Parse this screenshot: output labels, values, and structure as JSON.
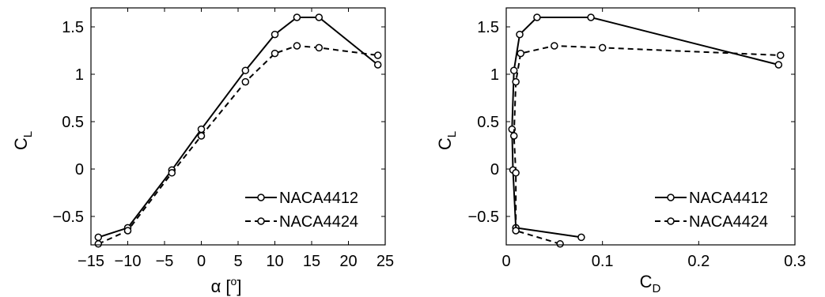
{
  "chart_data": [
    {
      "type": "line",
      "xlabel": {
        "main": "α [",
        "sup": "o",
        "close": "]"
      },
      "ylabel": {
        "main": "C",
        "sub": "L"
      },
      "xlim": [
        -15,
        25
      ],
      "ylim": [
        -0.8,
        1.7
      ],
      "xticks": [
        -15,
        -10,
        -5,
        0,
        5,
        10,
        15,
        20,
        25
      ],
      "yticks": [
        -0.5,
        0,
        0.5,
        1,
        1.5
      ],
      "xtick_labels": [
        "−15",
        "−10",
        "−5",
        "0",
        "5",
        "10",
        "15",
        "20",
        "25"
      ],
      "ytick_labels": [
        "−0.5",
        "0",
        "0.5",
        "1",
        "1.5"
      ],
      "legend_position": "bottom-right",
      "series": [
        {
          "name": "NACA4412",
          "style": "solid",
          "points": [
            [
              -14,
              -0.72
            ],
            [
              -10,
              -0.62
            ],
            [
              -4,
              -0.01
            ],
            [
              0,
              0.42
            ],
            [
              6,
              1.04
            ],
            [
              10,
              1.42
            ],
            [
              13,
              1.6
            ],
            [
              16,
              1.6
            ],
            [
              24,
              1.1
            ]
          ]
        },
        {
          "name": "NACA4424",
          "style": "dashed",
          "points": [
            [
              -14,
              -0.79
            ],
            [
              -10,
              -0.65
            ],
            [
              -4,
              -0.04
            ],
            [
              0,
              0.35
            ],
            [
              6,
              0.92
            ],
            [
              10,
              1.22
            ],
            [
              13,
              1.3
            ],
            [
              16,
              1.28
            ],
            [
              24,
              1.2
            ]
          ]
        }
      ]
    },
    {
      "type": "line",
      "xlabel": {
        "main": "C",
        "sub": "D"
      },
      "ylabel": {
        "main": "C",
        "sub": "L"
      },
      "xlim": [
        0,
        0.3
      ],
      "ylim": [
        -0.8,
        1.7
      ],
      "xticks": [
        0,
        0.1,
        0.2,
        0.3
      ],
      "yticks": [
        -0.5,
        0,
        0.5,
        1,
        1.5
      ],
      "xtick_labels": [
        "0",
        "0.1",
        "0.2",
        "0.3"
      ],
      "ytick_labels": [
        "−0.5",
        "0",
        "0.5",
        "1",
        "1.5"
      ],
      "legend_position": "bottom-right",
      "series": [
        {
          "name": "NACA4412",
          "style": "solid",
          "points": [
            [
              0.078,
              -0.72
            ],
            [
              0.01,
              -0.62
            ],
            [
              0.007,
              -0.01
            ],
            [
              0.006,
              0.42
            ],
            [
              0.008,
              1.04
            ],
            [
              0.014,
              1.42
            ],
            [
              0.032,
              1.6
            ],
            [
              0.088,
              1.6
            ],
            [
              0.283,
              1.1
            ]
          ]
        },
        {
          "name": "NACA4424",
          "style": "dashed",
          "points": [
            [
              0.056,
              -0.79
            ],
            [
              0.01,
              -0.65
            ],
            [
              0.01,
              -0.04
            ],
            [
              0.008,
              0.35
            ],
            [
              0.01,
              0.92
            ],
            [
              0.015,
              1.22
            ],
            [
              0.05,
              1.3
            ],
            [
              0.1,
              1.28
            ],
            [
              0.285,
              1.2
            ]
          ]
        }
      ]
    }
  ]
}
